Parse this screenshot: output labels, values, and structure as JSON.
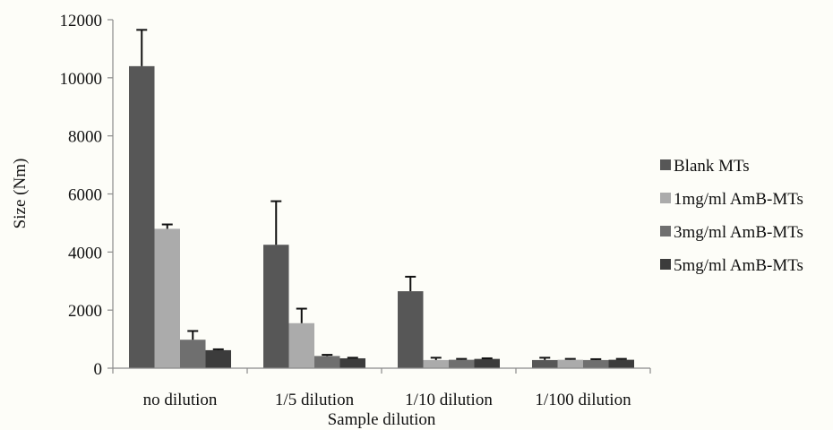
{
  "chart_data": {
    "type": "bar",
    "title": "",
    "xlabel": "Sample dilution",
    "ylabel": "Size (Nm)",
    "ylim": [
      0,
      12000
    ],
    "yticks": [
      0,
      2000,
      4000,
      6000,
      8000,
      10000,
      12000
    ],
    "grid": false,
    "legend_position": "right",
    "categories": [
      "no dilution",
      "1/5 dilution",
      "1/10 dilution",
      "1/100 dilution"
    ],
    "series": [
      {
        "name": "Blank MTs",
        "color": "#575757",
        "values": [
          10400,
          4250,
          2650,
          280
        ],
        "errors": [
          1250,
          1500,
          500,
          80
        ]
      },
      {
        "name": "1mg/ml AmB-MTs",
        "color": "#ababab",
        "values": [
          4800,
          1550,
          280,
          290
        ],
        "errors": [
          150,
          500,
          80,
          30
        ]
      },
      {
        "name": "3mg/ml AmB-MTs",
        "color": "#6f6f6f",
        "values": [
          980,
          420,
          290,
          280
        ],
        "errors": [
          300,
          40,
          30,
          30
        ]
      },
      {
        "name": "5mg/ml AmB-MTs",
        "color": "#3c3c3c",
        "values": [
          620,
          340,
          320,
          290
        ],
        "errors": [
          30,
          20,
          20,
          30
        ]
      }
    ]
  }
}
